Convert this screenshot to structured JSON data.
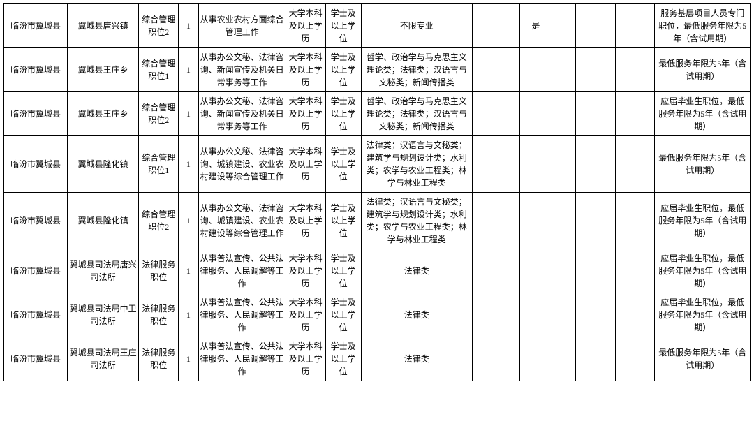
{
  "table": {
    "rows": [
      {
        "region": "临汾市翼城县",
        "dept": "翼城县唐兴镇",
        "position": "综合管理职位2",
        "count": "1",
        "duty": "从事农业农村方面综合管理工作",
        "edu": "大学本科及以上学历",
        "degree": "学士及以上学位",
        "major": "不限专业",
        "c8": "",
        "c9": "",
        "c10": "是",
        "c11": "",
        "c12": "",
        "c13": "",
        "remark": "服务基层项目人员专门职位，最低服务年限为5年（含试用期）"
      },
      {
        "region": "临汾市翼城县",
        "dept": "翼城县王庄乡",
        "position": "综合管理职位1",
        "count": "1",
        "duty": "从事办公文秘、法律咨询、新闻宣传及机关日常事务等工作",
        "edu": "大学本科及以上学历",
        "degree": "学士及以上学位",
        "major": "哲学、政治学与马克思主义理论类；法律类；汉语言与文秘类；新闻传播类",
        "c8": "",
        "c9": "",
        "c10": "",
        "c11": "",
        "c12": "",
        "c13": "",
        "remark": "最低服务年限为5年（含试用期）"
      },
      {
        "region": "临汾市翼城县",
        "dept": "翼城县王庄乡",
        "position": "综合管理职位2",
        "count": "1",
        "duty": "从事办公文秘、法律咨询、新闻宣传及机关日常事务等工作",
        "edu": "大学本科及以上学历",
        "degree": "学士及以上学位",
        "major": "哲学、政治学与马克思主义理论类；法律类；汉语言与文秘类；新闻传播类",
        "c8": "",
        "c9": "",
        "c10": "",
        "c11": "",
        "c12": "",
        "c13": "",
        "remark": "应届毕业生职位，最低服务年限为5年（含试用期）"
      },
      {
        "region": "临汾市翼城县",
        "dept": "翼城县隆化镇",
        "position": "综合管理职位1",
        "count": "1",
        "duty": "从事办公文秘、法律咨询、城镇建设、农业农村建设等综合管理工作",
        "edu": "大学本科及以上学历",
        "degree": "学士及以上学位",
        "major": "法律类；汉语言与文秘类；建筑学与规划设计类；水利类；农学与农业工程类；林学与林业工程类",
        "c8": "",
        "c9": "",
        "c10": "",
        "c11": "",
        "c12": "",
        "c13": "",
        "remark": "最低服务年限为5年（含试用期）"
      },
      {
        "region": "临汾市翼城县",
        "dept": "翼城县隆化镇",
        "position": "综合管理职位2",
        "count": "1",
        "duty": "从事办公文秘、法律咨询、城镇建设、农业农村建设等综合管理工作",
        "edu": "大学本科及以上学历",
        "degree": "学士及以上学位",
        "major": "法律类；汉语言与文秘类；建筑学与规划设计类；水利类；农学与农业工程类；林学与林业工程类",
        "c8": "",
        "c9": "",
        "c10": "",
        "c11": "",
        "c12": "",
        "c13": "",
        "remark": "应届毕业生职位，最低服务年限为5年（含试用期）"
      },
      {
        "region": "临汾市翼城县",
        "dept": "翼城县司法局唐兴司法所",
        "position": "法律服务职位",
        "count": "1",
        "duty": "从事普法宣传、公共法律服务、人民调解等工作",
        "edu": "大学本科及以上学历",
        "degree": "学士及以上学位",
        "major": "法律类",
        "c8": "",
        "c9": "",
        "c10": "",
        "c11": "",
        "c12": "",
        "c13": "",
        "remark": "应届毕业生职位，最低服务年限为5年（含试用期）"
      },
      {
        "region": "临汾市翼城县",
        "dept": "翼城县司法局中卫司法所",
        "position": "法律服务职位",
        "count": "1",
        "duty": "从事普法宣传、公共法律服务、人民调解等工作",
        "edu": "大学本科及以上学历",
        "degree": "学士及以上学位",
        "major": "法律类",
        "c8": "",
        "c9": "",
        "c10": "",
        "c11": "",
        "c12": "",
        "c13": "",
        "remark": "应届毕业生职位，最低服务年限为5年（含试用期）"
      },
      {
        "region": "临汾市翼城县",
        "dept": "翼城县司法局王庄司法所",
        "position": "法律服务职位",
        "count": "1",
        "duty": "从事普法宣传、公共法律服务、人民调解等工作",
        "edu": "大学本科及以上学历",
        "degree": "学士及以上学位",
        "major": "法律类",
        "c8": "",
        "c9": "",
        "c10": "",
        "c11": "",
        "c12": "",
        "c13": "",
        "remark": "最低服务年限为5年（含试用期）"
      }
    ]
  }
}
